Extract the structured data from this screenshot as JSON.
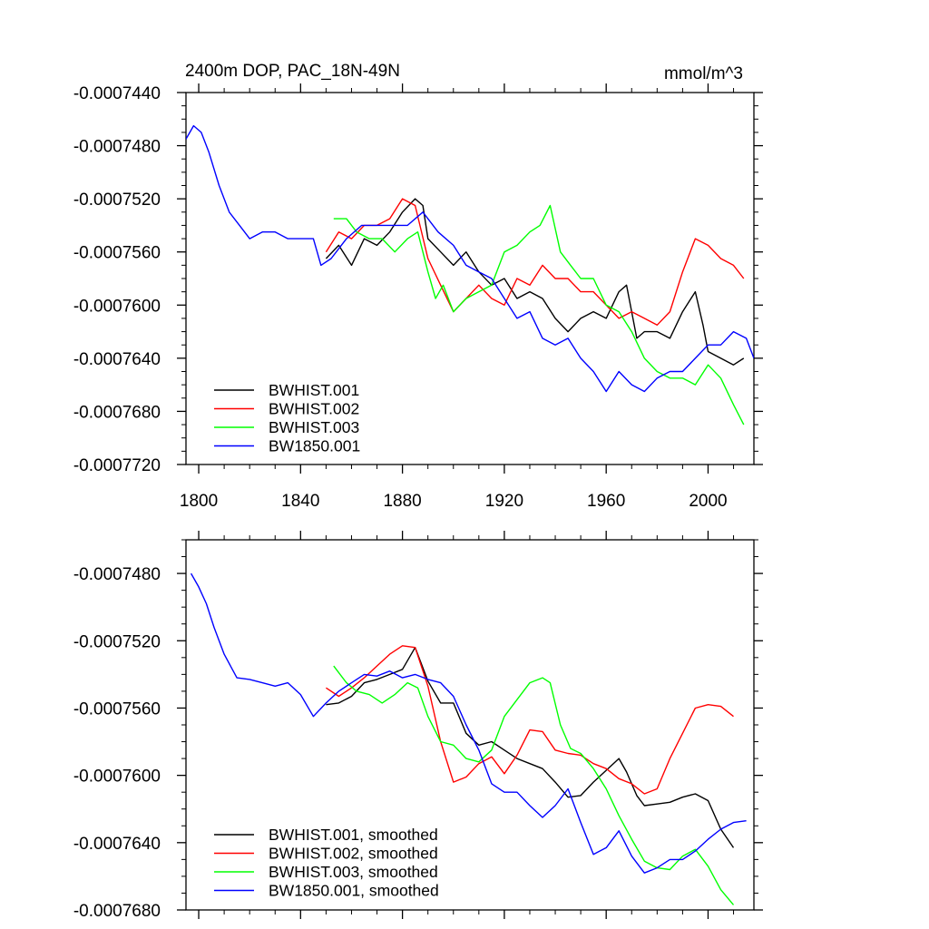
{
  "chart_data": [
    {
      "type": "line",
      "title": "2400m DOP, PAC_18N-49N",
      "units": "mmol/m^3",
      "xlim": [
        1795,
        2018
      ],
      "ylim": [
        -0.000772,
        -0.000744
      ],
      "xticks": [
        1800,
        1840,
        1880,
        1920,
        1960,
        2000
      ],
      "xtick_labels": [
        "1800",
        "1840",
        "1880",
        "1920",
        "1960",
        "2000"
      ],
      "yticks": [
        -0.000744,
        -0.000748,
        -0.000752,
        -0.000756,
        -0.00076,
        -0.000764,
        -0.000768,
        -0.000772
      ],
      "ytick_labels": [
        "-0.0007440",
        "-0.0007480",
        "-0.0007520",
        "-0.0007560",
        "-0.0007600",
        "-0.0007640",
        "-0.0007680",
        "-0.0007720"
      ],
      "legend_position": "bottom-left",
      "series": [
        {
          "name": "BWHIST.001",
          "color": "#000000",
          "x": [
            1850,
            1855,
            1860,
            1865,
            1870,
            1875,
            1880,
            1885,
            1888,
            1890,
            1895,
            1900,
            1905,
            1910,
            1915,
            1920,
            1925,
            1930,
            1935,
            1940,
            1945,
            1950,
            1955,
            1960,
            1965,
            1968,
            1972,
            1975,
            1980,
            1985,
            1990,
            1995,
            1998,
            2000,
            2005,
            2010,
            2014
          ],
          "y": [
            -0.0007565,
            -0.0007555,
            -0.000757,
            -0.000755,
            -0.0007555,
            -0.0007545,
            -0.000753,
            -0.000752,
            -0.0007525,
            -0.000755,
            -0.000756,
            -0.000757,
            -0.000756,
            -0.0007575,
            -0.0007585,
            -0.000758,
            -0.0007595,
            -0.000759,
            -0.0007595,
            -0.000761,
            -0.000762,
            -0.000761,
            -0.0007605,
            -0.000761,
            -0.000759,
            -0.0007585,
            -0.0007625,
            -0.000762,
            -0.000762,
            -0.0007625,
            -0.0007605,
            -0.000759,
            -0.0007615,
            -0.0007635,
            -0.000764,
            -0.0007645,
            -0.000764
          ]
        },
        {
          "name": "BWHIST.002",
          "color": "#ff0000",
          "x": [
            1850,
            1855,
            1860,
            1865,
            1870,
            1875,
            1880,
            1885,
            1890,
            1895,
            1900,
            1905,
            1910,
            1915,
            1920,
            1925,
            1930,
            1935,
            1940,
            1945,
            1950,
            1955,
            1960,
            1965,
            1970,
            1975,
            1980,
            1985,
            1990,
            1995,
            2000,
            2005,
            2010,
            2014
          ],
          "y": [
            -0.000756,
            -0.0007545,
            -0.000755,
            -0.000754,
            -0.000754,
            -0.0007535,
            -0.000752,
            -0.0007525,
            -0.0007565,
            -0.0007585,
            -0.0007605,
            -0.0007595,
            -0.0007585,
            -0.0007595,
            -0.00076,
            -0.000758,
            -0.0007585,
            -0.000757,
            -0.000758,
            -0.000758,
            -0.000759,
            -0.000759,
            -0.00076,
            -0.000761,
            -0.0007605,
            -0.000761,
            -0.0007615,
            -0.0007605,
            -0.0007575,
            -0.000755,
            -0.0007555,
            -0.0007565,
            -0.000757,
            -0.000758
          ]
        },
        {
          "name": "BWHIST.003",
          "color": "#00ff00",
          "x": [
            1853,
            1858,
            1862,
            1867,
            1872,
            1877,
            1882,
            1886,
            1890,
            1893,
            1896,
            1900,
            1905,
            1910,
            1915,
            1920,
            1925,
            1930,
            1934,
            1938,
            1942,
            1946,
            1950,
            1955,
            1960,
            1965,
            1970,
            1975,
            1980,
            1985,
            1990,
            1995,
            2000,
            2005,
            2010,
            2014
          ],
          "y": [
            -0.0007535,
            -0.0007535,
            -0.0007545,
            -0.000755,
            -0.000755,
            -0.000756,
            -0.000755,
            -0.0007545,
            -0.0007575,
            -0.0007595,
            -0.0007585,
            -0.0007605,
            -0.0007595,
            -0.000759,
            -0.0007585,
            -0.000756,
            -0.0007555,
            -0.0007545,
            -0.000754,
            -0.0007525,
            -0.000756,
            -0.000757,
            -0.000758,
            -0.000758,
            -0.00076,
            -0.0007605,
            -0.000762,
            -0.000764,
            -0.000765,
            -0.0007655,
            -0.0007655,
            -0.000766,
            -0.0007645,
            -0.0007655,
            -0.0007675,
            -0.000769
          ]
        },
        {
          "name": "BW1850.001",
          "color": "#0000ff",
          "x": [
            1795,
            1798,
            1801,
            1804,
            1808,
            1812,
            1816,
            1820,
            1825,
            1830,
            1835,
            1840,
            1845,
            1848,
            1852,
            1858,
            1864,
            1870,
            1876,
            1882,
            1888,
            1894,
            1900,
            1905,
            1910,
            1915,
            1920,
            1925,
            1930,
            1935,
            1940,
            1945,
            1950,
            1955,
            1960,
            1965,
            1970,
            1975,
            1980,
            1985,
            1990,
            1995,
            2000,
            2005,
            2010,
            2015,
            2018
          ],
          "y": [
            -0.0007475,
            -0.0007465,
            -0.000747,
            -0.0007485,
            -0.000751,
            -0.000753,
            -0.000754,
            -0.000755,
            -0.0007545,
            -0.0007545,
            -0.000755,
            -0.000755,
            -0.000755,
            -0.000757,
            -0.0007565,
            -0.000755,
            -0.000754,
            -0.000754,
            -0.000754,
            -0.000754,
            -0.000753,
            -0.0007545,
            -0.0007555,
            -0.000757,
            -0.0007575,
            -0.000758,
            -0.0007595,
            -0.000761,
            -0.0007605,
            -0.0007625,
            -0.000763,
            -0.0007625,
            -0.000764,
            -0.000765,
            -0.0007665,
            -0.000765,
            -0.000766,
            -0.0007665,
            -0.0007655,
            -0.000765,
            -0.000765,
            -0.000764,
            -0.000763,
            -0.000763,
            -0.000762,
            -0.0007625,
            -0.000764
          ]
        }
      ]
    },
    {
      "type": "line",
      "xlim": [
        1795,
        2018
      ],
      "ylim": [
        -0.000768,
        -0.000746
      ],
      "xticks": [
        1800,
        1840,
        1880,
        1920,
        1960,
        2000
      ],
      "yticks": [
        -0.000748,
        -0.000752,
        -0.000756,
        -0.00076,
        -0.000764,
        -0.000768
      ],
      "ytick_labels": [
        "-0.0007480",
        "-0.0007520",
        "-0.0007560",
        "-0.0007600",
        "-0.0007640",
        "-0.0007680"
      ],
      "legend_position": "bottom-left",
      "series": [
        {
          "name": "BWHIST.001, smoothed",
          "color": "#000000",
          "x": [
            1850,
            1855,
            1860,
            1865,
            1870,
            1875,
            1880,
            1885,
            1890,
            1895,
            1900,
            1905,
            1910,
            1915,
            1920,
            1925,
            1930,
            1935,
            1940,
            1945,
            1950,
            1955,
            1960,
            1965,
            1968,
            1972,
            1975,
            1980,
            1985,
            1990,
            1995,
            2000,
            2005,
            2010
          ],
          "y": [
            -0.0007558,
            -0.0007557,
            -0.0007553,
            -0.0007545,
            -0.0007543,
            -0.000754,
            -0.0007537,
            -0.0007524,
            -0.0007544,
            -0.0007557,
            -0.0007557,
            -0.0007575,
            -0.0007582,
            -0.000758,
            -0.0007585,
            -0.000759,
            -0.0007593,
            -0.0007596,
            -0.0007604,
            -0.0007613,
            -0.0007612,
            -0.0007604,
            -0.0007597,
            -0.000759,
            -0.0007598,
            -0.0007612,
            -0.0007618,
            -0.0007617,
            -0.0007616,
            -0.0007613,
            -0.0007611,
            -0.0007615,
            -0.0007632,
            -0.0007643
          ]
        },
        {
          "name": "BWHIST.002, smoothed",
          "color": "#ff0000",
          "x": [
            1850,
            1855,
            1860,
            1865,
            1870,
            1875,
            1880,
            1885,
            1890,
            1895,
            1900,
            1905,
            1910,
            1915,
            1920,
            1925,
            1930,
            1935,
            1940,
            1945,
            1950,
            1955,
            1960,
            1965,
            1970,
            1975,
            1980,
            1985,
            1990,
            1995,
            2000,
            2005,
            2010
          ],
          "y": [
            -0.0007548,
            -0.0007553,
            -0.0007548,
            -0.0007542,
            -0.0007535,
            -0.0007528,
            -0.0007523,
            -0.0007524,
            -0.0007547,
            -0.000758,
            -0.0007604,
            -0.0007601,
            -0.0007593,
            -0.0007589,
            -0.0007599,
            -0.0007588,
            -0.0007573,
            -0.0007574,
            -0.0007585,
            -0.0007587,
            -0.0007588,
            -0.0007593,
            -0.0007596,
            -0.0007602,
            -0.0007605,
            -0.0007611,
            -0.0007608,
            -0.000759,
            -0.0007575,
            -0.000756,
            -0.0007558,
            -0.0007559,
            -0.0007565
          ]
        },
        {
          "name": "BWHIST.003, smoothed",
          "color": "#00ff00",
          "x": [
            1853,
            1858,
            1862,
            1867,
            1872,
            1877,
            1882,
            1886,
            1890,
            1895,
            1900,
            1905,
            1910,
            1915,
            1920,
            1925,
            1930,
            1935,
            1938,
            1942,
            1946,
            1950,
            1955,
            1960,
            1965,
            1970,
            1975,
            1980,
            1985,
            1990,
            1995,
            2000,
            2005,
            2010
          ],
          "y": [
            -0.0007535,
            -0.0007545,
            -0.000755,
            -0.0007552,
            -0.0007557,
            -0.0007552,
            -0.0007545,
            -0.0007548,
            -0.0007565,
            -0.000758,
            -0.0007582,
            -0.000759,
            -0.0007592,
            -0.0007585,
            -0.0007565,
            -0.0007555,
            -0.0007545,
            -0.0007542,
            -0.0007545,
            -0.000757,
            -0.0007584,
            -0.0007587,
            -0.0007596,
            -0.0007608,
            -0.0007624,
            -0.0007638,
            -0.0007651,
            -0.0007655,
            -0.0007656,
            -0.0007648,
            -0.0007644,
            -0.0007654,
            -0.0007668,
            -0.0007677
          ]
        },
        {
          "name": "BW1850.001, smoothed",
          "color": "#0000ff",
          "x": [
            1797,
            1800,
            1803,
            1806,
            1810,
            1815,
            1820,
            1825,
            1830,
            1835,
            1840,
            1845,
            1850,
            1855,
            1860,
            1865,
            1870,
            1875,
            1880,
            1885,
            1890,
            1895,
            1900,
            1905,
            1910,
            1915,
            1920,
            1925,
            1930,
            1935,
            1940,
            1945,
            1950,
            1955,
            1960,
            1965,
            1970,
            1975,
            1980,
            1985,
            1990,
            1995,
            2000,
            2005,
            2010,
            2015
          ],
          "y": [
            -0.000748,
            -0.0007488,
            -0.0007498,
            -0.0007512,
            -0.0007528,
            -0.0007542,
            -0.0007543,
            -0.0007545,
            -0.0007547,
            -0.0007545,
            -0.0007552,
            -0.0007565,
            -0.0007557,
            -0.000755,
            -0.0007545,
            -0.000754,
            -0.0007541,
            -0.0007538,
            -0.0007542,
            -0.000754,
            -0.0007543,
            -0.0007545,
            -0.0007553,
            -0.000757,
            -0.0007585,
            -0.0007605,
            -0.000761,
            -0.000761,
            -0.0007618,
            -0.0007625,
            -0.0007618,
            -0.0007608,
            -0.0007628,
            -0.0007647,
            -0.0007643,
            -0.0007633,
            -0.0007648,
            -0.0007658,
            -0.0007655,
            -0.000765,
            -0.000765,
            -0.0007645,
            -0.0007638,
            -0.0007632,
            -0.0007628,
            -0.0007627
          ]
        }
      ]
    }
  ]
}
